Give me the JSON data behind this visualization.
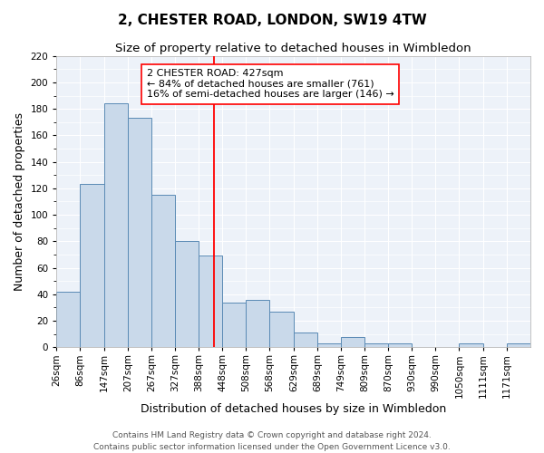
{
  "title": "2, CHESTER ROAD, LONDON, SW19 4TW",
  "subtitle": "Size of property relative to detached houses in Wimbledon",
  "xlabel": "Distribution of detached houses by size in Wimbledon",
  "ylabel": "Number of detached properties",
  "bins": [
    26,
    86,
    147,
    207,
    267,
    327,
    388,
    448,
    508,
    568,
    629,
    689,
    749,
    809,
    870,
    930,
    990,
    1050,
    1111,
    1171,
    1231
  ],
  "heights": [
    42,
    123,
    184,
    173,
    115,
    80,
    69,
    34,
    36,
    27,
    11,
    3,
    8,
    3,
    3,
    0,
    0,
    3,
    0,
    3
  ],
  "bar_facecolor": "#c9d9ea",
  "bar_edgecolor": "#5a8ab5",
  "property_line_x": 427,
  "property_line_color": "red",
  "annotation_line1": "2 CHESTER ROAD: 427sqm",
  "annotation_line2": "← 84% of detached houses are smaller (761)",
  "annotation_line3": "16% of semi-detached houses are larger (146) →",
  "ylim": [
    0,
    220
  ],
  "yticks": [
    0,
    20,
    40,
    60,
    80,
    100,
    120,
    140,
    160,
    180,
    200,
    220
  ],
  "background_color": "#edf2f9",
  "footer_line1": "Contains HM Land Registry data © Crown copyright and database right 2024.",
  "footer_line2": "Contains public sector information licensed under the Open Government Licence v3.0.",
  "title_fontsize": 11,
  "subtitle_fontsize": 9.5,
  "xlabel_fontsize": 9,
  "ylabel_fontsize": 9,
  "tick_fontsize": 7.5,
  "annotation_fontsize": 8,
  "footer_fontsize": 6.5
}
